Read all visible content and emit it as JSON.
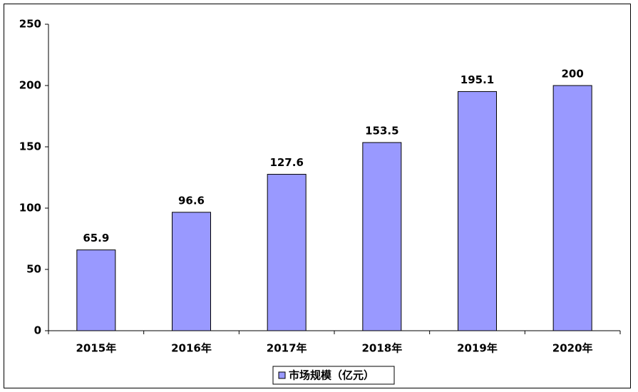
{
  "chart_data": {
    "type": "bar",
    "categories": [
      "2015年",
      "2016年",
      "2017年",
      "2018年",
      "2019年",
      "2020年"
    ],
    "series": [
      {
        "name": "市场规模（亿元）",
        "color": "#9999ff",
        "values": [
          65.9,
          96.6,
          127.6,
          153.5,
          195.1,
          200
        ]
      }
    ],
    "ylim": [
      0,
      250
    ],
    "yticks": [
      0,
      50,
      100,
      150,
      200,
      250
    ],
    "grid": false,
    "legend": "bottom"
  }
}
